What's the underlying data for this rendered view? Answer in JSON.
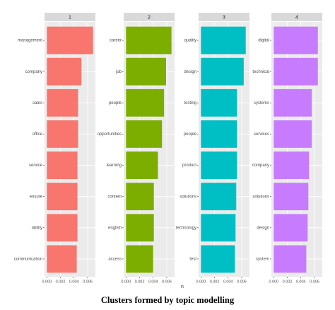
{
  "chart_data": [
    {
      "type": "bar",
      "orientation": "horizontal",
      "title": "1",
      "color": "#F8766D",
      "categories": [
        "management",
        "company",
        "sales",
        "office",
        "service",
        "ensure",
        "ability",
        "communication"
      ],
      "values": [
        0.0068,
        0.0051,
        0.0046,
        0.0046,
        0.0045,
        0.0045,
        0.0045,
        0.0044
      ],
      "xlim": [
        -0.00034,
        0.00715
      ],
      "xticks": [
        {
          "value": 0,
          "label": "0.000"
        },
        {
          "value": 0.002,
          "label": "0.002"
        },
        {
          "value": 0.004,
          "label": "0.004"
        },
        {
          "value": 0.006,
          "label": "0.006"
        }
      ],
      "grid": true
    },
    {
      "type": "bar",
      "orientation": "horizontal",
      "title": "2",
      "color": "#7CAE00",
      "categories": [
        "career",
        "job",
        "people",
        "opportunities",
        "learning",
        "content",
        "english",
        "access"
      ],
      "values": [
        0.0067,
        0.0059,
        0.0056,
        0.0053,
        0.0047,
        0.0041,
        0.0041,
        0.004
      ],
      "xlim": [
        -0.00034,
        0.00715
      ],
      "xticks": [
        {
          "value": 0,
          "label": "0.000"
        },
        {
          "value": 0.002,
          "label": "0.002"
        },
        {
          "value": 0.004,
          "label": "0.004"
        },
        {
          "value": 0.006,
          "label": "0.006"
        }
      ],
      "grid": true
    },
    {
      "type": "bar",
      "orientation": "horizontal",
      "title": "3",
      "color": "#00BFC4",
      "categories": [
        "quality",
        "design",
        "testing",
        "people",
        "product",
        "solutions",
        "technology",
        "test"
      ],
      "values": [
        0.0066,
        0.0063,
        0.0053,
        0.0053,
        0.0053,
        0.0052,
        0.0051,
        0.005
      ],
      "xlim": [
        -0.00034,
        0.00715
      ],
      "xticks": [
        {
          "value": 0,
          "label": "0.000"
        },
        {
          "value": 0.002,
          "label": "0.002"
        },
        {
          "value": 0.004,
          "label": "0.004"
        },
        {
          "value": 0.006,
          "label": "0.006"
        }
      ],
      "grid": true
    },
    {
      "type": "bar",
      "orientation": "horizontal",
      "title": "4",
      "color": "#C77CFF",
      "categories": [
        "digital",
        "technical",
        "systems",
        "services",
        "company",
        "solutions",
        "design",
        "system"
      ],
      "values": [
        0.0065,
        0.0065,
        0.0056,
        0.0056,
        0.0052,
        0.0051,
        0.005,
        0.0048
      ],
      "xlim": [
        -0.00034,
        0.00715
      ],
      "xticks": [
        {
          "value": 0,
          "label": "0.000"
        },
        {
          "value": 0.002,
          "label": "0.002"
        },
        {
          "value": 0.004,
          "label": "0.004"
        },
        {
          "value": 0.006,
          "label": "0.006"
        }
      ],
      "grid": true
    }
  ],
  "x_label": "n",
  "caption": "Clusters formed by topic modelling"
}
